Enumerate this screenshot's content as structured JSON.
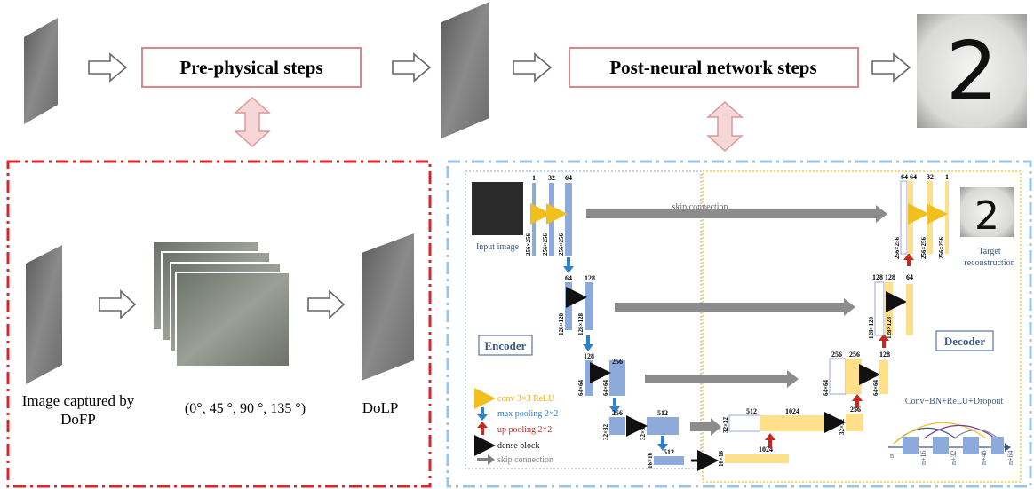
{
  "top_flow": {
    "pre_steps_label": "Pre-physical steps",
    "post_steps_label": "Post-neural network steps",
    "result_digit": "2"
  },
  "physical_panel": {
    "caption_dofp_line1": "Image captured by",
    "caption_dofp_line2": "DoFP",
    "caption_angles": "(0°, 45 °, 90 °, 135 °)",
    "caption_dolp": "DoLP"
  },
  "network": {
    "input_label": "Input image",
    "target_label_line1": "Target",
    "target_label_line2": "reconstruction",
    "target_digit": "2",
    "encoder_label": "Encoder",
    "decoder_label": "Decoder",
    "skip_label": "skip connection",
    "level1": {
      "ch_a": "1",
      "ch_b": "32",
      "ch_c": "64",
      "size_a": "256×256",
      "size_b": "256×256",
      "size_c": "256×256"
    },
    "level2": {
      "ch_a": "64",
      "ch_b": "128",
      "size_a": "128×128",
      "size_b": "128×128"
    },
    "level3": {
      "ch_a": "128",
      "ch_b": "256",
      "size_a": "64×64",
      "size_b": "64×64"
    },
    "level4": {
      "ch_a": "256",
      "ch_b": "512",
      "size_a": "32×32",
      "size_b": "32×32"
    },
    "level5": {
      "ch_a": "512",
      "size_a": "16×16"
    },
    "bottleneck": {
      "ch_a": "512",
      "ch_b": "1024",
      "ch_c": "1024",
      "size_a": "32×32",
      "size_b": "16×16"
    },
    "dec4": {
      "ch_a": "256",
      "size_a": "32×32"
    },
    "dec3": {
      "ch_a": "256",
      "ch_b": "256",
      "ch_c": "128",
      "size_a": "64×64",
      "size_b": "64×64"
    },
    "dec2": {
      "ch_a": "128",
      "ch_b": "128",
      "ch_c": "64",
      "size_a": "128×128",
      "size_b": "128×128"
    },
    "dec1": {
      "ch_a": "64",
      "ch_b": "64",
      "ch_c": "32",
      "ch_d": "1",
      "size_a": "256×256",
      "size_b": "256×256",
      "size_c": "256×256"
    }
  },
  "legend": [
    {
      "label": "conv 3×3 ReLU",
      "color": "#f2c01e"
    },
    {
      "label": "max pooling 2×2",
      "color": "#2f7fc9"
    },
    {
      "label": "up pooling 2×2",
      "color": "#c8271e"
    },
    {
      "label": "dense block",
      "color": "#111111"
    },
    {
      "label": "skip connection",
      "color": "#808080"
    }
  ],
  "dense_block": {
    "title": "Conv+BN+ReLU+Dropout",
    "n0": "n",
    "n1": "n+16",
    "n2": "n+32",
    "n3": "n+48",
    "n4": "n+64"
  },
  "colors": {
    "encoder": "#8eaadb",
    "decoder": "#ffe08a",
    "left_border": "#d9262e",
    "right_border": "#9cc3e2",
    "flow_box": "#d9878a"
  }
}
